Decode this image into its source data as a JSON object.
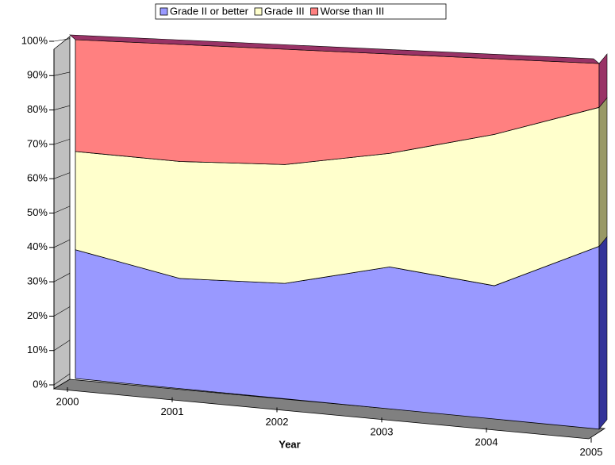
{
  "chart_data": {
    "type": "area",
    "stacked": true,
    "x_label": "Year",
    "categories": [
      "2000",
      "2001",
      "2002",
      "2003",
      "2004",
      "2005"
    ],
    "series": [
      {
        "name": "Grade II or better",
        "color": "#9999ff",
        "values": [
          38,
          32,
          33,
          40,
          37,
          50
        ]
      },
      {
        "name": "Grade III",
        "color": "#ffffcc",
        "values": [
          29,
          34,
          34,
          32,
          42,
          38
        ]
      },
      {
        "name": "Worse than III",
        "color": "#ff8080",
        "values": [
          33,
          34,
          33,
          28,
          21,
          12
        ]
      }
    ],
    "ylim": [
      0,
      100
    ],
    "yticks": [
      {
        "value": 0,
        "label": "0%"
      },
      {
        "value": 10,
        "label": "10%"
      },
      {
        "value": 20,
        "label": "20%"
      },
      {
        "value": 30,
        "label": "30%"
      },
      {
        "value": 40,
        "label": "40%"
      },
      {
        "value": 50,
        "label": "50%"
      },
      {
        "value": 60,
        "label": "60%"
      },
      {
        "value": 70,
        "label": "70%"
      },
      {
        "value": 80,
        "label": "80%"
      },
      {
        "value": 90,
        "label": "90%"
      },
      {
        "value": 100,
        "label": "100%"
      }
    ],
    "legend": "top"
  }
}
